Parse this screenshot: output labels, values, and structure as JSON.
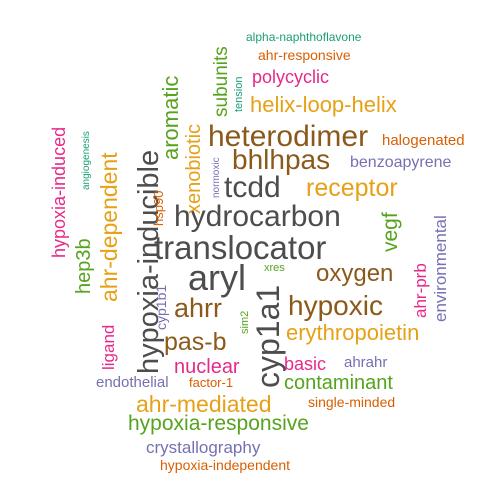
{
  "wordcloud": {
    "colors": {
      "dark": "#4d4d4d",
      "brown": "#8b5a1b",
      "gold": "#e6a117",
      "green": "#56a31d",
      "orange": "#d95f02",
      "purple": "#7570b3",
      "magenta": "#e7298a",
      "teal": "#1b9e77"
    },
    "words": [
      {
        "text": "translocator",
        "color": "dark"
      },
      {
        "text": "hydrocarbon",
        "color": "dark"
      },
      {
        "text": "aryl",
        "color": "dark"
      },
      {
        "text": "hypoxia-inducible",
        "color": "dark"
      },
      {
        "text": "cyp1a1",
        "color": "dark"
      },
      {
        "text": "tcdd",
        "color": "dark"
      },
      {
        "text": "heterodimer",
        "color": "brown"
      },
      {
        "text": "bhlhpas",
        "color": "brown"
      },
      {
        "text": "oxygen",
        "color": "brown"
      },
      {
        "text": "hypoxic",
        "color": "brown"
      },
      {
        "text": "ahrr",
        "color": "brown"
      },
      {
        "text": "pas-b",
        "color": "brown"
      },
      {
        "text": "ahr-dependent",
        "color": "gold"
      },
      {
        "text": "receptor",
        "color": "gold"
      },
      {
        "text": "helix-loop-helix",
        "color": "gold"
      },
      {
        "text": "erythropoietin",
        "color": "gold"
      },
      {
        "text": "ahr-mediated",
        "color": "gold"
      },
      {
        "text": "xenobiotic",
        "color": "gold"
      },
      {
        "text": "aromatic",
        "color": "green"
      },
      {
        "text": "subunits",
        "color": "green"
      },
      {
        "text": "vegf",
        "color": "green"
      },
      {
        "text": "hep3b",
        "color": "green"
      },
      {
        "text": "contaminant",
        "color": "green"
      },
      {
        "text": "hypoxia-responsive",
        "color": "green"
      },
      {
        "text": "xres",
        "color": "green"
      },
      {
        "text": "sim2",
        "color": "green"
      },
      {
        "text": "halogenated",
        "color": "orange"
      },
      {
        "text": "ahr-responsive",
        "color": "orange"
      },
      {
        "text": "hsp90",
        "color": "orange"
      },
      {
        "text": "single-minded",
        "color": "orange"
      },
      {
        "text": "factor-1",
        "color": "orange"
      },
      {
        "text": "hypoxia-independent",
        "color": "orange"
      },
      {
        "text": "benzoapyrene",
        "color": "purple"
      },
      {
        "text": "environmental",
        "color": "purple"
      },
      {
        "text": "cyp1b1",
        "color": "purple"
      },
      {
        "text": "endothelial",
        "color": "purple"
      },
      {
        "text": "ahrahr",
        "color": "purple"
      },
      {
        "text": "crystallography",
        "color": "purple"
      },
      {
        "text": "normoxic",
        "color": "purple"
      },
      {
        "text": "polycyclic",
        "color": "magenta"
      },
      {
        "text": "hypoxia-induced",
        "color": "magenta"
      },
      {
        "text": "ligand",
        "color": "magenta"
      },
      {
        "text": "ahr-prb",
        "color": "magenta"
      },
      {
        "text": "nuclear",
        "color": "magenta"
      },
      {
        "text": "basic",
        "color": "magenta"
      },
      {
        "text": "alpha-naphthoflavone",
        "color": "teal"
      },
      {
        "text": "tension",
        "color": "teal"
      },
      {
        "text": "angiogenesis",
        "color": "teal"
      }
    ]
  }
}
